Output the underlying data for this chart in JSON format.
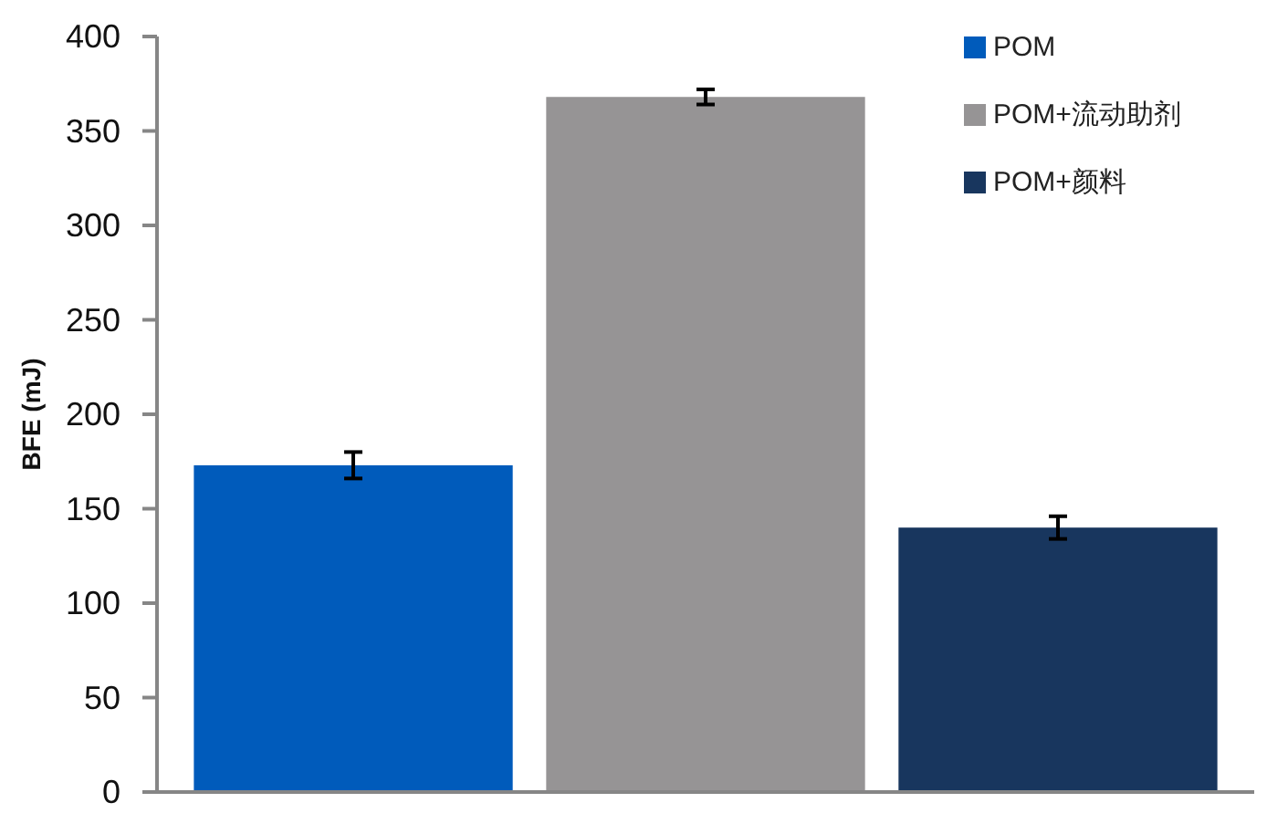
{
  "chart_data": {
    "type": "bar",
    "ylabel": "BFE (mJ)",
    "categories": [
      null
    ],
    "series": [
      {
        "name": "POM",
        "color": "#005bbb",
        "values": [
          173
        ],
        "errors": [
          7
        ]
      },
      {
        "name": "POM+流动助剂",
        "color": "#969495",
        "values": [
          368
        ],
        "errors": [
          4
        ]
      },
      {
        "name": "POM+颜料",
        "color": "#18365e",
        "values": [
          140
        ],
        "errors": [
          6
        ]
      }
    ],
    "ylim": [
      0,
      400
    ],
    "yticks": [
      0,
      50,
      100,
      150,
      200,
      250,
      300,
      350,
      400
    ],
    "legend": "top right"
  }
}
